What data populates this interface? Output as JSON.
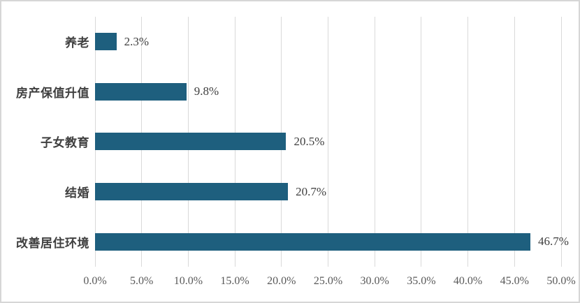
{
  "chart_data": {
    "type": "bar",
    "orientation": "horizontal",
    "title": "",
    "xlabel": "",
    "ylabel": "",
    "categories": [
      "养老",
      "房产保值升值",
      "子女教育",
      "结婚",
      "改善居住环境"
    ],
    "values": [
      2.3,
      9.8,
      20.5,
      20.7,
      46.7
    ],
    "value_labels": [
      "2.3%",
      "9.8%",
      "20.5%",
      "20.7%",
      "46.7%"
    ],
    "xlim": [
      0,
      50
    ],
    "x_tick_step": 5,
    "x_ticks": [
      "0.0%",
      "5.0%",
      "10.0%",
      "15.0%",
      "20.0%",
      "25.0%",
      "30.0%",
      "35.0%",
      "40.0%",
      "45.0%",
      "50.0%"
    ],
    "grid": "vertical",
    "legend_position": "none",
    "colors": {
      "bar": "#1E5F7E",
      "category_label": "#3F3F3F",
      "value_label": "#404040",
      "axis_label": "#595959",
      "gridline": "#D9D9D9",
      "frame_border": "#D6D6D6",
      "background": "#FFFFFF"
    }
  }
}
